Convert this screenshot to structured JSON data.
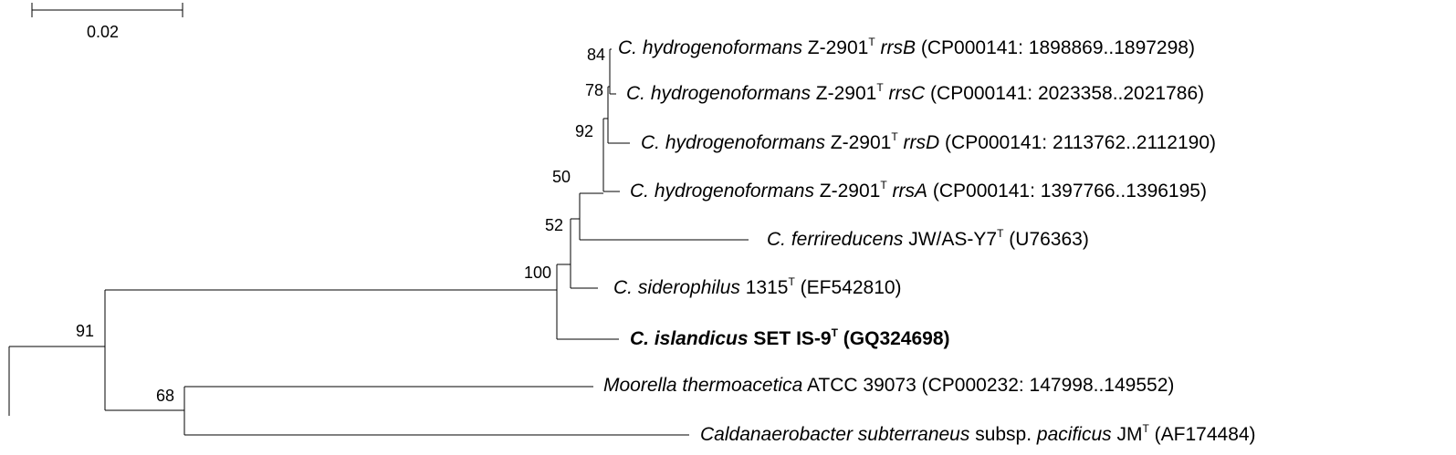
{
  "scale_bar": {
    "label": "0.02"
  },
  "leaves": [
    {
      "id": "rrsB",
      "italic": "C. hydrogenoformans",
      "strain": "Z-2901",
      "sup": "T",
      "gene": "rrsB",
      "acc": "(CP000141: 1898869..1897298)",
      "bold": false
    },
    {
      "id": "rrsC",
      "italic": "C. hydrogenoformans",
      "strain": "Z-2901",
      "sup": "T",
      "gene": "rrsC",
      "acc": "(CP000141: 2023358..2021786)",
      "bold": false
    },
    {
      "id": "rrsD",
      "italic": "C. hydrogenoformans",
      "strain": "Z-2901",
      "sup": "T",
      "gene": "rrsD",
      "acc": "(CP000141: 2113762..2112190)",
      "bold": false
    },
    {
      "id": "rrsA",
      "italic": "C. hydrogenoformans",
      "strain": "Z-2901",
      "sup": "T",
      "gene": "rrsA",
      "acc": "(CP000141: 1397766..1396195)",
      "bold": false
    },
    {
      "id": "ferri",
      "italic": "C. ferrireducens",
      "strain": "JW/AS-Y7",
      "sup": "T",
      "gene": "",
      "acc": "(U76363)",
      "bold": false
    },
    {
      "id": "sidero",
      "italic": "C. siderophilus",
      "strain": "1315",
      "sup": "T",
      "gene": "",
      "acc": "(EF542810)",
      "bold": false
    },
    {
      "id": "island",
      "italic": "C. islandicus",
      "strain": "SET IS-9",
      "sup": "T",
      "gene": "",
      "acc": "(GQ324698)",
      "bold": true
    },
    {
      "id": "moorella",
      "italic": "Moorella thermoacetica",
      "strain": "ATCC 39073",
      "sup": "",
      "gene": "",
      "acc": "(CP000232: 147998..149552)",
      "bold": false
    },
    {
      "id": "caldan",
      "italic": "Caldanaerobacter subterraneus",
      "mid": "subsp.",
      "italic2": "pacificus",
      "strain": "JM",
      "sup": "T",
      "gene": "",
      "acc": "(AF174484)",
      "bold": false
    }
  ],
  "bootstrap": {
    "n84": "84",
    "n78": "78",
    "n92": "92",
    "n50": "50",
    "n52": "52",
    "n100": "100",
    "n91": "91",
    "n68": "68"
  }
}
